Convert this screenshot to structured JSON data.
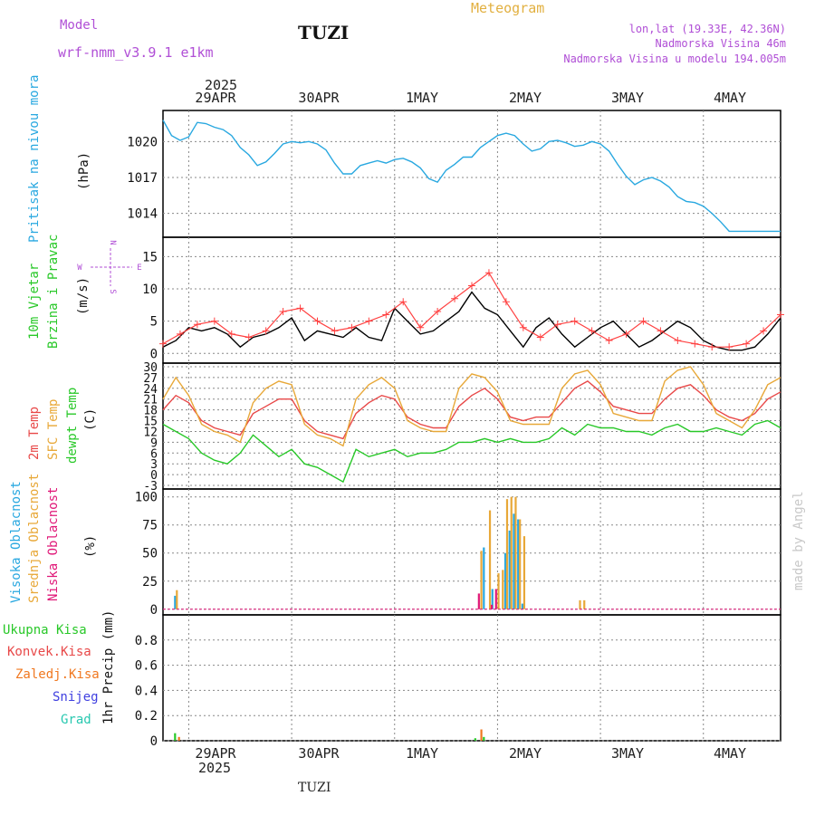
{
  "header": {
    "model_label": "Model",
    "model_name": "wrf-nmm_v3.9.1 e1km",
    "title": "TUZI",
    "meteogram": "Meteogram",
    "lonlat": "lon,lat (19.33E, 42.36N)",
    "elevation": "Nadmorska Visina 46m",
    "model_elevation": "Nadmorska Visina u modelu 194.005m",
    "footer_title": "TUZI",
    "watermark": "made by Angel",
    "year_top": "2025",
    "year_bottom": "2025"
  },
  "colors": {
    "pressure": "#29a8e0",
    "wind": "#000000",
    "gust": "#ff4040",
    "t2m": "#e84848",
    "sfc": "#e8a838",
    "dewpt": "#28c828",
    "high_cloud": "#29a8e0",
    "mid_cloud": "#e8a838",
    "low_cloud": "#e01878",
    "precip_total": "#28c828",
    "precip_conv": "#e84848",
    "precip_frozen": "#f07820",
    "snow": "#4040e0",
    "hail": "#28c8b0",
    "panel_labels": [
      "#29a8e0",
      "#28c828",
      "#e84848",
      "#e8a838",
      "#28c828"
    ]
  },
  "chart_data": [
    {
      "type": "line",
      "title": "",
      "ylabel_series": "Pritisak na nivou mora",
      "ylabel_unit": "(hPa)",
      "x_ticks": [
        "29APR",
        "30APR",
        "1MAY",
        "2MAY",
        "3MAY",
        "4MAY"
      ],
      "x_start_offset_hours": -6,
      "x_range_hours": [
        0,
        144
      ],
      "ylim": [
        1012,
        1022.6
      ],
      "yticks": [
        1014,
        1017,
        1020
      ],
      "grid": true,
      "series": [
        {
          "name": "Pritisak na nivou mora",
          "x": [
            0,
            2,
            4,
            6,
            8,
            10,
            12,
            14,
            16,
            18,
            20,
            22,
            24,
            26,
            28,
            30,
            32,
            34,
            36,
            38,
            40,
            42,
            44,
            46,
            48,
            50,
            52,
            54,
            56,
            58,
            60,
            62,
            64,
            66,
            68,
            70,
            72,
            74,
            76,
            78,
            80,
            82,
            84,
            86,
            88,
            90,
            92,
            94,
            96,
            98,
            100,
            102,
            104,
            106,
            108,
            110,
            112,
            114,
            116,
            118,
            120,
            122,
            124,
            126,
            128,
            130,
            132,
            134,
            136,
            138,
            140,
            142,
            144
          ],
          "values": [
            1021.8,
            1020.5,
            1020.1,
            1020.4,
            1021.6,
            1021.5,
            1021.2,
            1021.0,
            1020.5,
            1019.5,
            1018.9,
            1018.0,
            1018.3,
            1019.0,
            1019.8,
            1020.0,
            1019.9,
            1020.0,
            1019.8,
            1019.3,
            1018.2,
            1017.3,
            1017.3,
            1018.0,
            1018.2,
            1018.4,
            1018.2,
            1018.5,
            1018.6,
            1018.3,
            1017.8,
            1016.9,
            1016.6,
            1017.6,
            1018.1,
            1018.7,
            1018.7,
            1019.5,
            1020.0,
            1020.5,
            1020.7,
            1020.5,
            1019.8,
            1019.2,
            1019.4,
            1020.0,
            1020.1,
            1019.9,
            1019.6,
            1019.7,
            1020.0,
            1019.8,
            1019.2,
            1018.1,
            1017.1,
            1016.4,
            1016.8,
            1017.0,
            1016.7,
            1016.2,
            1015.4,
            1015.0,
            1014.9,
            1014.6,
            1014.0,
            1013.3,
            1012.5,
            1012.5,
            1012.5,
            1012.5,
            1012.5,
            1012.5,
            1012.5
          ]
        }
      ]
    },
    {
      "type": "line",
      "title": "",
      "ylabel_series": [
        "10m Vjetar",
        "Brzina i Pravac"
      ],
      "ylabel_unit": "(m/s)",
      "compass": [
        "N",
        "E",
        "S",
        "W"
      ],
      "ylim": [
        -1.5,
        18
      ],
      "yticks": [
        0,
        5,
        10,
        15
      ],
      "grid": true,
      "series": [
        {
          "name": "Brzina",
          "x": [
            0,
            3,
            6,
            9,
            12,
            15,
            18,
            21,
            24,
            27,
            30,
            33,
            36,
            39,
            42,
            45,
            48,
            51,
            54,
            57,
            60,
            63,
            66,
            69,
            72,
            75,
            78,
            81,
            84,
            87,
            90,
            93,
            96,
            99,
            102,
            105,
            108,
            111,
            114,
            117,
            120,
            123,
            126,
            129,
            132,
            135,
            138,
            141,
            144
          ],
          "values": [
            1.0,
            2.0,
            4.0,
            3.5,
            4.0,
            3.0,
            1.0,
            2.5,
            3.0,
            4.0,
            5.5,
            2.0,
            3.5,
            3.0,
            2.5,
            4.0,
            2.5,
            2.0,
            7.0,
            5.0,
            3.0,
            3.5,
            5.0,
            6.5,
            9.5,
            7.0,
            6.0,
            3.5,
            1.0,
            4.0,
            5.5,
            3.0,
            1.0,
            2.5,
            4.0,
            5.0,
            3.0,
            1.0,
            2.0,
            3.5,
            5.0,
            4.0,
            2.0,
            1.0,
            0.5,
            0.5,
            1.0,
            3.0,
            5.5
          ]
        },
        {
          "name": "Udari",
          "x": [
            0,
            4,
            8,
            12,
            16,
            20,
            24,
            28,
            32,
            36,
            40,
            44,
            48,
            52,
            56,
            60,
            64,
            68,
            72,
            76,
            80,
            84,
            88,
            92,
            96,
            100,
            104,
            108,
            112,
            116,
            120,
            124,
            128,
            132,
            136,
            140,
            144
          ],
          "values": [
            1.5,
            3.0,
            4.5,
            5.0,
            3.0,
            2.5,
            3.5,
            6.5,
            7.0,
            5.0,
            3.5,
            4.0,
            5.0,
            6.0,
            8.0,
            4.0,
            6.5,
            8.5,
            10.5,
            12.5,
            8.0,
            4.0,
            2.5,
            4.5,
            5.0,
            3.5,
            2.0,
            3.0,
            5.0,
            3.5,
            2.0,
            1.5,
            1.0,
            1.0,
            1.5,
            3.5,
            6.0
          ]
        }
      ]
    },
    {
      "type": "line",
      "title": "",
      "ylabel_series": [
        "2m Temp",
        "SFC Temp",
        "dewpt Temp"
      ],
      "ylabel_unit": "(C)",
      "ylim": [
        -4,
        31
      ],
      "yticks": [
        -3,
        0,
        3,
        6,
        9,
        12,
        15,
        18,
        21,
        24,
        27,
        30
      ],
      "grid": true,
      "series": [
        {
          "name": "2m Temp",
          "x": [
            0,
            3,
            6,
            9,
            12,
            15,
            18,
            21,
            24,
            27,
            30,
            33,
            36,
            39,
            42,
            45,
            48,
            51,
            54,
            57,
            60,
            63,
            66,
            69,
            72,
            75,
            78,
            81,
            84,
            87,
            90,
            93,
            96,
            99,
            102,
            105,
            108,
            111,
            114,
            117,
            120,
            123,
            126,
            129,
            132,
            135,
            138,
            141,
            144
          ],
          "values": [
            18,
            22,
            20,
            15,
            13,
            12,
            11,
            17,
            19,
            21,
            21,
            15,
            12,
            11,
            10,
            17,
            20,
            22,
            21,
            16,
            14,
            13,
            13,
            19,
            22,
            24,
            21,
            16,
            15,
            16,
            16,
            20,
            24,
            26,
            23,
            19,
            18,
            17,
            17,
            21,
            24,
            25,
            22,
            18,
            16,
            15,
            17,
            21,
            23
          ]
        },
        {
          "name": "SFC Temp",
          "x": [
            0,
            3,
            6,
            9,
            12,
            15,
            18,
            21,
            24,
            27,
            30,
            33,
            36,
            39,
            42,
            45,
            48,
            51,
            54,
            57,
            60,
            63,
            66,
            69,
            72,
            75,
            78,
            81,
            84,
            87,
            90,
            93,
            96,
            99,
            102,
            105,
            108,
            111,
            114,
            117,
            120,
            123,
            126,
            129,
            132,
            135,
            138,
            141,
            144
          ],
          "values": [
            21,
            27,
            22,
            14,
            12,
            11,
            9,
            20,
            24,
            26,
            25,
            14,
            11,
            10,
            8,
            21,
            25,
            27,
            24,
            15,
            13,
            12,
            12,
            24,
            28,
            27,
            23,
            15,
            14,
            14,
            14,
            24,
            28,
            29,
            25,
            17,
            16,
            15,
            15,
            26,
            29,
            30,
            25,
            17,
            15,
            13,
            18,
            25,
            27
          ]
        },
        {
          "name": "dewpt Temp",
          "x": [
            0,
            3,
            6,
            9,
            12,
            15,
            18,
            21,
            24,
            27,
            30,
            33,
            36,
            39,
            42,
            45,
            48,
            51,
            54,
            57,
            60,
            63,
            66,
            69,
            72,
            75,
            78,
            81,
            84,
            87,
            90,
            93,
            96,
            99,
            102,
            105,
            108,
            111,
            114,
            117,
            120,
            123,
            126,
            129,
            132,
            135,
            138,
            141,
            144
          ],
          "values": [
            14,
            12,
            10,
            6,
            4,
            3,
            6,
            11,
            8,
            5,
            7,
            3,
            2,
            0,
            -2,
            7,
            5,
            6,
            7,
            5,
            6,
            6,
            7,
            9,
            9,
            10,
            9,
            10,
            9,
            9,
            10,
            13,
            11,
            14,
            13,
            13,
            12,
            12,
            11,
            13,
            14,
            12,
            12,
            13,
            12,
            11,
            14,
            15,
            13
          ]
        }
      ]
    },
    {
      "type": "bar",
      "title": "",
      "ylabel_series": [
        "Visoka Oblacnost",
        "Srednja Oblacnost",
        "Niska Oblacnost"
      ],
      "ylabel_unit": "(%)",
      "ylim": [
        -5,
        107
      ],
      "yticks": [
        0,
        25,
        50,
        75,
        100
      ],
      "grid": true,
      "series": [
        {
          "name": "Visoka Oblacnost",
          "x": [
            3,
            75,
            77,
            80,
            81,
            82,
            83,
            84
          ],
          "values": [
            12,
            55,
            18,
            50,
            70,
            85,
            80,
            5
          ]
        },
        {
          "name": "Srednja Oblacnost",
          "x": [
            3,
            74,
            76,
            78,
            79,
            80,
            81,
            82,
            83,
            84,
            97,
            98
          ],
          "values": [
            17,
            52,
            88,
            32,
            35,
            98,
            100,
            100,
            80,
            65,
            8,
            8
          ]
        },
        {
          "name": "Niska Oblacnost",
          "x": [
            73,
            76,
            77
          ],
          "values": [
            14,
            4,
            18
          ]
        }
      ]
    },
    {
      "type": "bar",
      "title": "",
      "ylabel_series": [
        "Ukupna Kisa",
        "Konvek.Kisa",
        "Zaledj.Kisa",
        "Snijeg",
        "Grad"
      ],
      "ylabel_unit": "1hr Precip (mm)",
      "ylim": [
        0,
        1.0
      ],
      "yticks": [
        0,
        0.2,
        0.4,
        0.6,
        0.8
      ],
      "grid": true,
      "series": [
        {
          "name": "Ukupna Kisa",
          "x": [
            3,
            73,
            75
          ],
          "values": [
            0.06,
            0.02,
            0.03
          ]
        },
        {
          "name": "Zaledj.Kisa",
          "x": [
            3.5,
            74
          ],
          "values": [
            0.03,
            0.09
          ]
        }
      ]
    }
  ]
}
